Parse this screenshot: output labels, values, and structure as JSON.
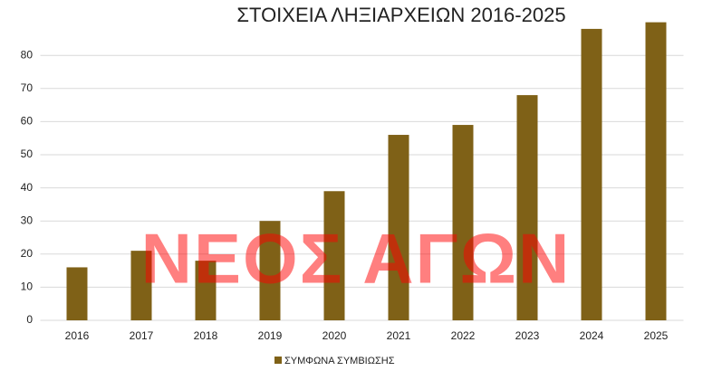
{
  "chart_data": {
    "type": "bar",
    "title": "ΣΤΟΙΧΕΙΑ ΛΗΞΙΑΡΧΕΙΩΝ 2016-2025",
    "categories": [
      "2016",
      "2017",
      "2018",
      "2019",
      "2020",
      "2021",
      "2022",
      "2023",
      "2024",
      "2025"
    ],
    "series": [
      {
        "name": "ΣΥΜΦΩΝΑ ΣΥΜΒΙΩΣΗΣ",
        "color": "#7f6117",
        "values": [
          16,
          21,
          18,
          30,
          39,
          56,
          59,
          68,
          88,
          90
        ]
      }
    ],
    "ylim": [
      0,
      90
    ],
    "yticks": [
      0,
      10,
      20,
      30,
      40,
      50,
      60,
      70,
      80
    ],
    "grid": true,
    "legend": "bottom",
    "watermark": "ΝΕΟΣ ΑΓΩΝ"
  }
}
